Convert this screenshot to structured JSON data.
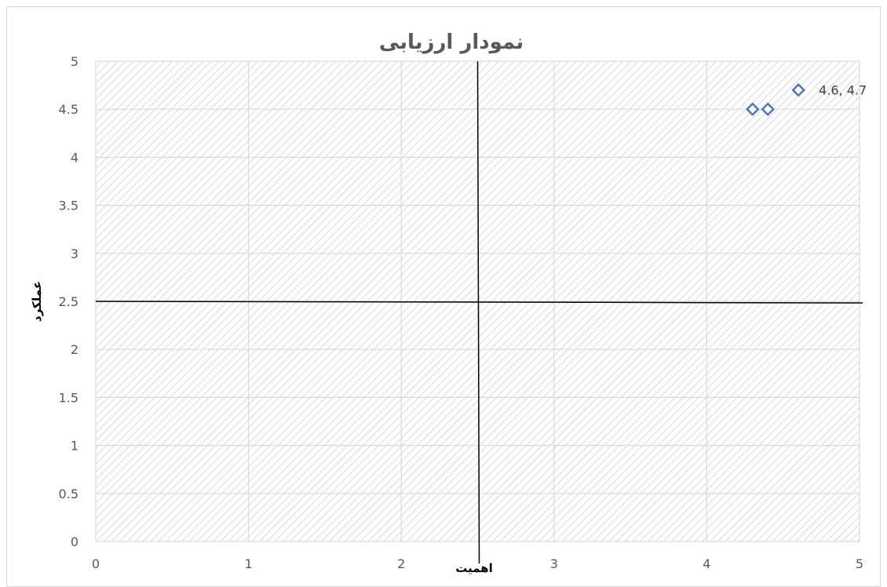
{
  "chart_data": {
    "type": "scatter",
    "title": "نمودار ارزیابی",
    "xlabel": "اهمیت",
    "ylabel": "عملکرد",
    "xlim": [
      0,
      5
    ],
    "ylim": [
      0,
      5
    ],
    "x_ticks": [
      "0",
      "1",
      "2",
      "3",
      "4",
      "5"
    ],
    "y_ticks": [
      "0",
      "0.5",
      "1",
      "1.5",
      "2",
      "2.5",
      "3",
      "3.5",
      "4",
      "4.5",
      "5"
    ],
    "grid": true,
    "plot_pattern": "diagonal-hatch",
    "reference_lines": {
      "x": 2.5,
      "y": 2.5
    },
    "series": [
      {
        "marker": "diamond-open",
        "color": "#4472c4",
        "x": [
          4.3,
          4.4,
          4.6
        ],
        "y": [
          4.5,
          4.5,
          4.7
        ]
      }
    ],
    "data_labels": [
      {
        "x": 4.6,
        "y": 4.7,
        "text": "4.6, 4.7"
      }
    ]
  }
}
